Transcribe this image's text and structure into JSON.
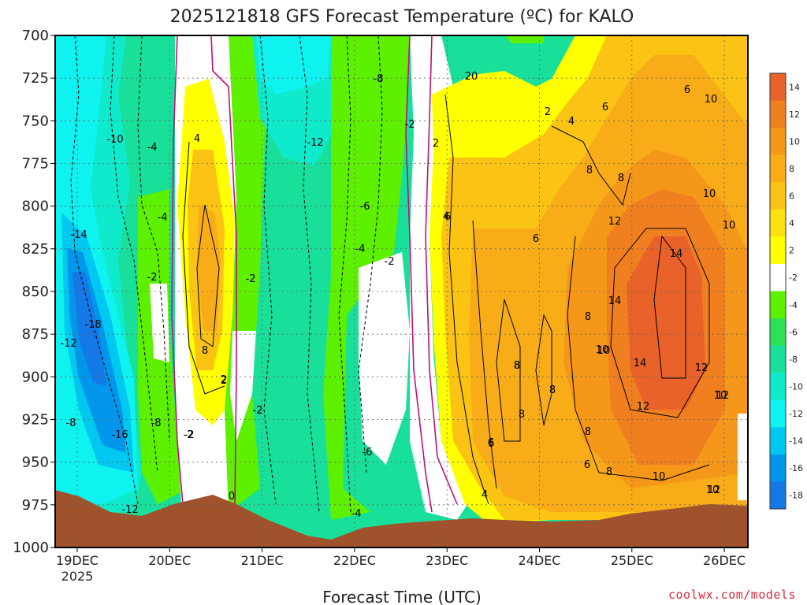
{
  "chart_data": {
    "type": "heatmap",
    "title": "2025121818 GFS Forecast Temperature (ºC) for KALO",
    "xlabel": "Forecast Time (UTC)",
    "ylabel": "",
    "credit": "coolwx.com/models",
    "y_axis": {
      "scale": "pressure (hPa)",
      "range": [
        1000,
        700
      ],
      "ticks": [
        "700",
        "725",
        "750",
        "775",
        "800",
        "825",
        "850",
        "875",
        "900",
        "925",
        "950",
        "975",
        "1000"
      ]
    },
    "x_axis": {
      "ticks": [
        "19DEC",
        "20DEC",
        "21DEC",
        "22DEC",
        "23DEC",
        "24DEC",
        "25DEC",
        "26DEC"
      ],
      "year_label": "2025"
    },
    "colorbar": {
      "labels": [
        "14",
        "12",
        "10",
        "8",
        "6",
        "4",
        "2",
        "-2",
        "-4",
        "-6",
        "-8",
        "-10",
        "-12",
        "-14",
        "-16",
        "-18"
      ],
      "colors": [
        "#e8622a",
        "#f07f20",
        "#f5981a",
        "#f8ac18",
        "#fbc313",
        "#fde012",
        "#ffff00",
        "#ffffff",
        "#5df000",
        "#2de055",
        "#18e09a",
        "#10eacc",
        "#0ef2f0",
        "#00c8f0",
        "#0096ec",
        "#1478e6"
      ]
    },
    "field_colors": {
      "ground": "#a0522d",
      "zero_contour": "#c0107a",
      "contour": "#000000"
    },
    "contour_labels": [
      "20",
      "2",
      "4",
      "6",
      "8",
      "8",
      "6",
      "10",
      "12",
      "14",
      "10",
      "10",
      "6",
      "2",
      "8",
      "8",
      "14",
      "10",
      "14",
      "12",
      "12",
      "10",
      "10",
      "12",
      "8",
      "8",
      "6",
      "6",
      "8",
      "10",
      "12",
      "6",
      "4",
      "2",
      "-2",
      "-8",
      "-10",
      "-12",
      "-6",
      "-4",
      "4",
      "-14",
      "-2",
      "-18",
      "-12",
      "-8",
      "-16",
      "-8",
      "-2",
      "-12",
      "-2",
      "-4",
      "-6",
      "-2",
      "-4",
      "-2",
      "-2",
      "-4",
      "2",
      "8",
      "0",
      "-2",
      "4",
      "6",
      "8",
      "8",
      "10"
    ]
  }
}
